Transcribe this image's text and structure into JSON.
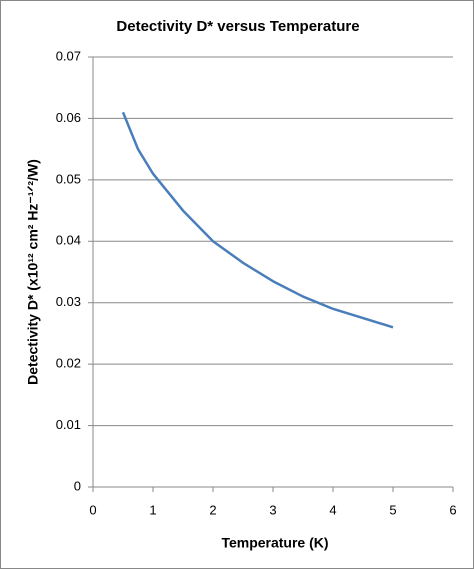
{
  "chart_data": {
    "type": "line",
    "title": "Detectivity D* versus Temperature",
    "x_label": "Temperature (K)",
    "y_label": "Detectivity D* (x10¹² cm² Hz⁻¹ᐟ²/W)",
    "series": [
      {
        "color": "#4a7ebb",
        "x": [
          0.5,
          0.75,
          1,
          1.5,
          2,
          2.5,
          3,
          3.5,
          4,
          4.5,
          5
        ],
        "values": [
          0.061,
          0.055,
          0.051,
          0.045,
          0.04,
          0.0365,
          0.0335,
          0.031,
          0.029,
          0.0275,
          0.026
        ]
      }
    ],
    "xlim": [
      0,
      6
    ],
    "xticks": [
      0,
      1,
      2,
      3,
      4,
      5,
      6
    ],
    "ylim": [
      0,
      0.07
    ],
    "yticks": [
      0,
      0.01,
      0.02,
      0.03,
      0.04,
      0.05,
      0.06,
      0.07
    ],
    "grid": true
  }
}
